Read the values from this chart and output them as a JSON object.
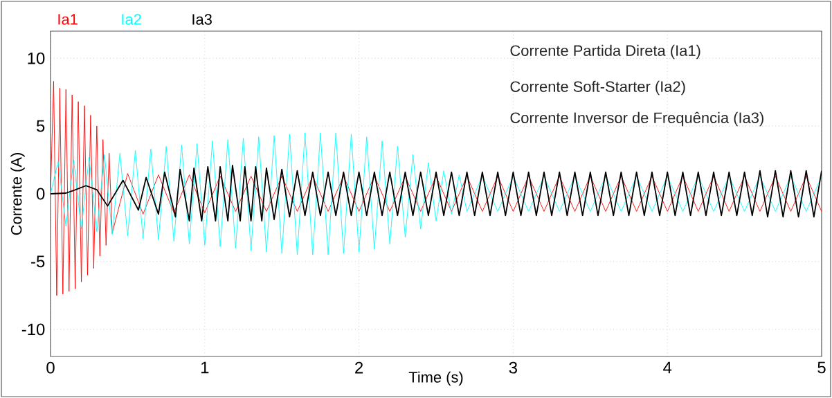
{
  "chart_data": {
    "type": "line",
    "xlabel": "Time (s)",
    "ylabel": "Corrente (A)",
    "annotations": [
      "Corrente Partida Direta (Ia1)",
      "Corrente Soft-Starter (Ia2)",
      "Corrente Inversor de Frequência (Ia3)"
    ],
    "xlim": [
      0,
      5
    ],
    "ylim": [
      -12,
      12
    ],
    "xticks": [
      0,
      1,
      2,
      3,
      4,
      5
    ],
    "yticks": [
      -10,
      -5,
      0,
      5,
      10
    ],
    "grid": true,
    "legend": "top left",
    "marker": "none",
    "line_style": "solid",
    "series": [
      {
        "name": "Ia1",
        "color": "#ff0000",
        "x": [
          0,
          0.02,
          0.04,
          0.06,
          0.08,
          0.1,
          0.12,
          0.14,
          0.16,
          0.18,
          0.2,
          0.22,
          0.24,
          0.26,
          0.28,
          0.3,
          0.32,
          0.34,
          0.36,
          0.38,
          0.4,
          0.5,
          0.6,
          0.7,
          0.8,
          0.9,
          1.0,
          1.1,
          1.2,
          1.3,
          1.4,
          1.5,
          1.6,
          1.7,
          1.8,
          1.9,
          2.0,
          2.1,
          2.2,
          2.3,
          2.4,
          2.5,
          2.6,
          2.7,
          2.8,
          2.9,
          3.0,
          3.1,
          3.2,
          3.3,
          3.4,
          3.5,
          3.6,
          3.7,
          3.8,
          3.9,
          4.0,
          4.1,
          4.2,
          4.3,
          4.4,
          4.5,
          4.6,
          4.7,
          4.8,
          4.9,
          5.0
        ],
        "values": [
          0,
          8.3,
          -7.5,
          7.8,
          -7.4,
          7.7,
          -7.2,
          7.3,
          -7.0,
          6.8,
          -6.5,
          6.5,
          -6.0,
          5.8,
          -5.5,
          5.0,
          -4.6,
          4.0,
          -3.8,
          3.0,
          -2.9,
          1.5,
          -1.5,
          1.4,
          -1.4,
          1.4,
          -1.4,
          1.3,
          -1.3,
          1.3,
          -1.3,
          1.3,
          -1.3,
          1.3,
          -1.3,
          1.3,
          -1.3,
          1.3,
          -1.3,
          1.3,
          -1.3,
          1.3,
          -1.3,
          1.3,
          -1.3,
          1.3,
          -1.3,
          1.3,
          -1.3,
          1.3,
          -1.3,
          1.3,
          -1.3,
          1.3,
          -1.3,
          1.3,
          -1.3,
          1.3,
          -1.3,
          1.3,
          -1.3,
          1.3,
          -1.3,
          1.3,
          -1.3,
          1.3,
          -1.3
        ]
      },
      {
        "name": "Ia2",
        "color": "#00ffff",
        "x": [
          0,
          0.05,
          0.1,
          0.15,
          0.2,
          0.25,
          0.3,
          0.35,
          0.4,
          0.45,
          0.5,
          0.55,
          0.6,
          0.65,
          0.7,
          0.75,
          0.8,
          0.85,
          0.9,
          0.95,
          1.0,
          1.05,
          1.1,
          1.15,
          1.2,
          1.25,
          1.3,
          1.35,
          1.4,
          1.45,
          1.5,
          1.55,
          1.6,
          1.65,
          1.7,
          1.75,
          1.8,
          1.85,
          1.9,
          1.95,
          2.0,
          2.05,
          2.1,
          2.15,
          2.2,
          2.25,
          2.3,
          2.35,
          2.4,
          2.45,
          2.5,
          2.55,
          2.6,
          2.65,
          2.7,
          2.8,
          2.9,
          3.0,
          3.1,
          3.2,
          3.3,
          3.4,
          3.5,
          3.6,
          3.7,
          3.8,
          3.9,
          4.0,
          4.1,
          4.2,
          4.3,
          4.4,
          4.5,
          4.6,
          4.7,
          4.8,
          4.9,
          5.0
        ],
        "values": [
          0,
          2.4,
          -2.4,
          2.5,
          -2.6,
          2.7,
          -2.8,
          2.9,
          -3.0,
          3.0,
          -3.1,
          3.2,
          -3.3,
          3.3,
          -3.4,
          3.5,
          -3.5,
          3.6,
          -3.7,
          3.7,
          -3.8,
          3.9,
          -3.9,
          4.0,
          -4.0,
          4.1,
          -4.2,
          4.2,
          -4.3,
          4.3,
          -4.4,
          4.4,
          -4.5,
          4.5,
          -4.5,
          4.5,
          -4.5,
          4.5,
          -4.4,
          4.4,
          -4.3,
          4.2,
          -4.1,
          3.9,
          -3.7,
          3.5,
          -3.2,
          2.9,
          -2.6,
          2.3,
          -2.0,
          1.7,
          -1.5,
          1.4,
          -1.3,
          1.3,
          -1.3,
          1.3,
          -1.3,
          1.3,
          -1.3,
          1.3,
          -1.3,
          1.3,
          -1.3,
          1.3,
          -1.3,
          1.3,
          -1.3,
          1.3,
          -1.3,
          1.3,
          -1.3,
          1.3,
          -1.3,
          1.3,
          -1.3,
          1.3
        ]
      },
      {
        "name": "Ia3",
        "color": "#000000",
        "x": [
          0,
          0.1,
          0.15,
          0.23,
          0.3,
          0.37,
          0.47,
          0.57,
          0.62,
          0.7,
          0.74,
          0.81,
          0.84,
          0.9,
          0.93,
          0.98,
          1.02,
          1.07,
          1.1,
          1.15,
          1.18,
          1.23,
          1.26,
          1.3,
          1.33,
          1.37,
          1.4,
          1.45,
          1.5,
          1.55,
          1.6,
          1.65,
          1.7,
          1.75,
          1.8,
          1.85,
          1.9,
          1.95,
          2.0,
          2.05,
          2.1,
          2.15,
          2.2,
          2.25,
          2.3,
          2.35,
          2.4,
          2.45,
          2.5,
          2.55,
          2.6,
          2.65,
          2.7,
          2.75,
          2.8,
          2.85,
          2.9,
          2.95,
          3.0,
          3.05,
          3.1,
          3.15,
          3.2,
          3.25,
          3.3,
          3.35,
          3.4,
          3.45,
          3.5,
          3.55,
          3.6,
          3.65,
          3.7,
          3.75,
          3.8,
          3.85,
          3.9,
          3.95,
          4.0,
          4.05,
          4.1,
          4.15,
          4.2,
          4.25,
          4.3,
          4.35,
          4.4,
          4.45,
          4.5,
          4.55,
          4.6,
          4.65,
          4.7,
          4.75,
          4.8,
          4.85,
          4.9,
          4.95,
          5.0
        ],
        "values": [
          0,
          0.05,
          0.25,
          0.6,
          0.3,
          -0.9,
          1.0,
          -1.2,
          1.2,
          -1.5,
          1.6,
          -1.7,
          1.8,
          -2.0,
          1.9,
          -2.0,
          2.0,
          -2.0,
          2.0,
          -2.0,
          2.1,
          -2.0,
          2.0,
          -2.0,
          2.0,
          -2.0,
          1.9,
          -1.9,
          1.8,
          -1.7,
          1.7,
          -1.6,
          1.6,
          -1.6,
          1.6,
          -1.6,
          1.6,
          -1.6,
          1.6,
          -1.6,
          1.6,
          -1.6,
          1.6,
          -1.6,
          1.6,
          -1.6,
          1.6,
          -1.6,
          1.6,
          -1.6,
          1.6,
          -1.6,
          1.6,
          -1.6,
          1.6,
          -1.6,
          1.6,
          -1.6,
          1.6,
          -1.6,
          1.6,
          -1.6,
          1.6,
          -1.6,
          1.6,
          -1.6,
          1.6,
          -1.6,
          1.6,
          -1.6,
          1.6,
          -1.6,
          1.6,
          -1.6,
          1.6,
          -1.6,
          1.6,
          -1.6,
          1.6,
          -1.6,
          1.6,
          -1.6,
          1.6,
          -1.6,
          1.6,
          -1.6,
          1.6,
          -1.6,
          1.6,
          -1.6,
          1.7,
          -1.7,
          1.7,
          -1.7,
          1.7,
          -1.7,
          1.7,
          -1.7,
          1.7
        ]
      }
    ]
  }
}
